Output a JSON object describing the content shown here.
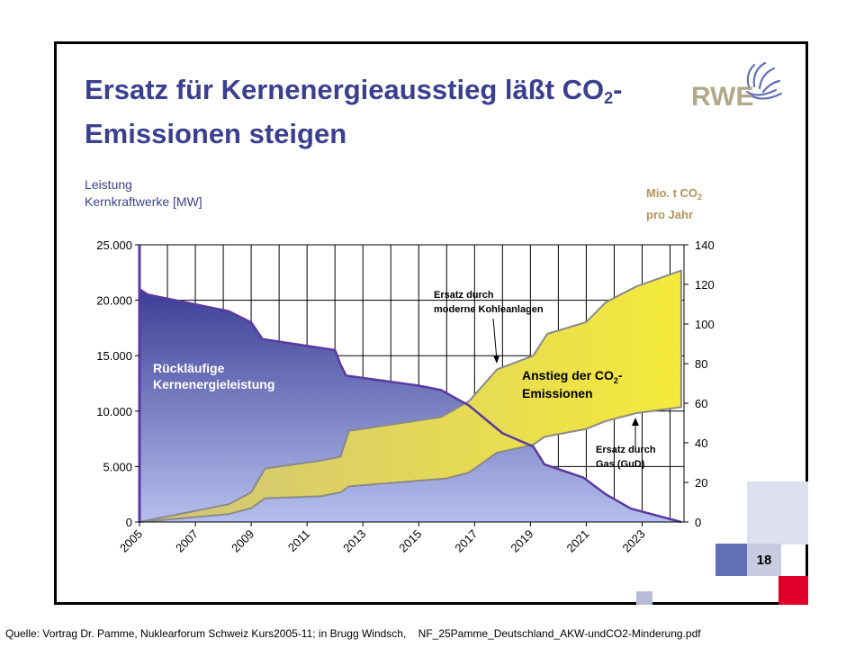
{
  "title_main": "Ersatz für Kernenergieausstieg läßt CO",
  "title_sub": "2",
  "title_dash": "-",
  "title_line2": "Emissionen steigen",
  "logo_text": "RWE",
  "left_axis": {
    "line1": "Leistung",
    "line2": "Kernkraftwerke [MW]"
  },
  "right_axis": {
    "line1_pre": "Mio. t CO",
    "line1_sub": "2",
    "line2": "pro Jahr"
  },
  "page_number": "18",
  "source": {
    "part1": "Quelle:  Vortrag Dr. Pamme,  Nuklearforum Schweiz Kurs2005-11;   in Brugg Windsch,",
    "part2": "NF_25Pamme_Deutschland_AKW-undCO2-Minderung.pdf"
  },
  "colors": {
    "title": "#3b3f8f",
    "nuclear_top": "#3b3f96",
    "nuclear_bottom": "#b5bfee",
    "co2_left": "#cfc27a",
    "co2_right": "#f5ea3a",
    "right_axis_title": "#b3935a",
    "deco_blue": "#6470b4",
    "deco_light": "#dde0ef",
    "deco_red": "#e0002a"
  },
  "chart_data": {
    "type": "area",
    "x_ticks": [
      "2005",
      "2007",
      "2009",
      "2011",
      "2013",
      "2015",
      "2017",
      "2019",
      "2021",
      "2023"
    ],
    "x_range": [
      2005,
      2024.5
    ],
    "y_left": {
      "range": [
        0,
        25000
      ],
      "ticks": [
        "25.000",
        "20.000",
        "15.000",
        "10.000",
        "5.000",
        "0"
      ],
      "tick_values": [
        25000,
        20000,
        15000,
        10000,
        5000,
        0
      ]
    },
    "y_right": {
      "range": [
        0,
        140
      ],
      "ticks": [
        "140",
        "120",
        "100",
        "80",
        "60",
        "40",
        "20",
        "0"
      ],
      "tick_values": [
        140,
        120,
        100,
        80,
        60,
        40,
        20,
        0
      ]
    },
    "series": [
      {
        "key": "nuclear",
        "axis": "left",
        "points": [
          [
            2005,
            21000
          ],
          [
            2005.3,
            20500
          ],
          [
            2008.2,
            19000
          ],
          [
            2009,
            18000
          ],
          [
            2009.4,
            16500
          ],
          [
            2012,
            15500
          ],
          [
            2012.2,
            14200
          ],
          [
            2012.4,
            13200
          ],
          [
            2015,
            12300
          ],
          [
            2015.8,
            11900
          ],
          [
            2016.8,
            10500
          ],
          [
            2018,
            8000
          ],
          [
            2019.1,
            6800
          ],
          [
            2019.5,
            5200
          ],
          [
            2020.9,
            4000
          ],
          [
            2021.7,
            2500
          ],
          [
            2022.6,
            1200
          ],
          [
            2024.4,
            0
          ]
        ]
      },
      {
        "key": "gas",
        "axis": "right",
        "points": [
          [
            2005,
            0
          ],
          [
            2008.2,
            4
          ],
          [
            2009,
            7
          ],
          [
            2009.5,
            12
          ],
          [
            2011.5,
            13
          ],
          [
            2012.2,
            15
          ],
          [
            2012.5,
            18
          ],
          [
            2016,
            22
          ],
          [
            2016.8,
            25
          ],
          [
            2017.8,
            35
          ],
          [
            2019.1,
            39
          ],
          [
            2019.5,
            43
          ],
          [
            2021,
            47
          ],
          [
            2021.7,
            51
          ],
          [
            2022.8,
            55
          ],
          [
            2024.4,
            58
          ]
        ]
      },
      {
        "key": "total",
        "axis": "right",
        "points": [
          [
            2005,
            0
          ],
          [
            2008.2,
            9
          ],
          [
            2009,
            15
          ],
          [
            2009.5,
            27
          ],
          [
            2011.5,
            31
          ],
          [
            2012.2,
            33
          ],
          [
            2012.5,
            46
          ],
          [
            2015.8,
            53
          ],
          [
            2016.8,
            61
          ],
          [
            2017.8,
            77
          ],
          [
            2019.1,
            84
          ],
          [
            2019.6,
            95
          ],
          [
            2021,
            101
          ],
          [
            2021.7,
            111
          ],
          [
            2022.8,
            119
          ],
          [
            2024.4,
            127
          ]
        ]
      }
    ],
    "annotations": {
      "nuclear_label": [
        "Rückläufige",
        "Kernenergieleistung"
      ],
      "co2_label_pre": "Anstieg der CO",
      "co2_label_sub": "2",
      "co2_label_dash": "-",
      "co2_label_line2": "Emissionen",
      "coal_label": [
        "Ersatz durch",
        "moderne Kohleanlagen"
      ],
      "gas_label": [
        "Ersatz durch",
        "Gas (GuD)"
      ]
    }
  }
}
